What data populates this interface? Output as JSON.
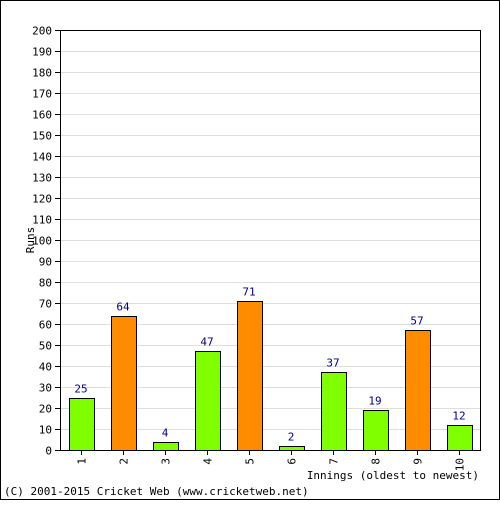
{
  "colors": {
    "background": "#ffffff",
    "frame": "#000000",
    "grid": "#dddddd",
    "text": "#000000",
    "value_label": "#000080",
    "bar_green": "#7fff00",
    "bar_orange": "#ff8c00"
  },
  "footer": "(C) 2001-2015 Cricket Web (www.cricketweb.net)",
  "chart_data": {
    "type": "bar",
    "title": "",
    "xlabel": "Innings (oldest to newest)",
    "ylabel": "Runs",
    "ylim": [
      0,
      200
    ],
    "ytick_step": 10,
    "grid": true,
    "legend": "none",
    "categories": [
      "1",
      "2",
      "3",
      "4",
      "5",
      "6",
      "7",
      "8",
      "9",
      "10"
    ],
    "values": [
      25,
      64,
      4,
      47,
      71,
      2,
      37,
      19,
      57,
      12
    ],
    "bar_colors": [
      "green",
      "orange",
      "green",
      "green",
      "orange",
      "green",
      "green",
      "green",
      "orange",
      "green"
    ],
    "data_labels": [
      "25",
      "64",
      "4",
      "47",
      "71",
      "2",
      "37",
      "19",
      "57",
      "12"
    ]
  }
}
